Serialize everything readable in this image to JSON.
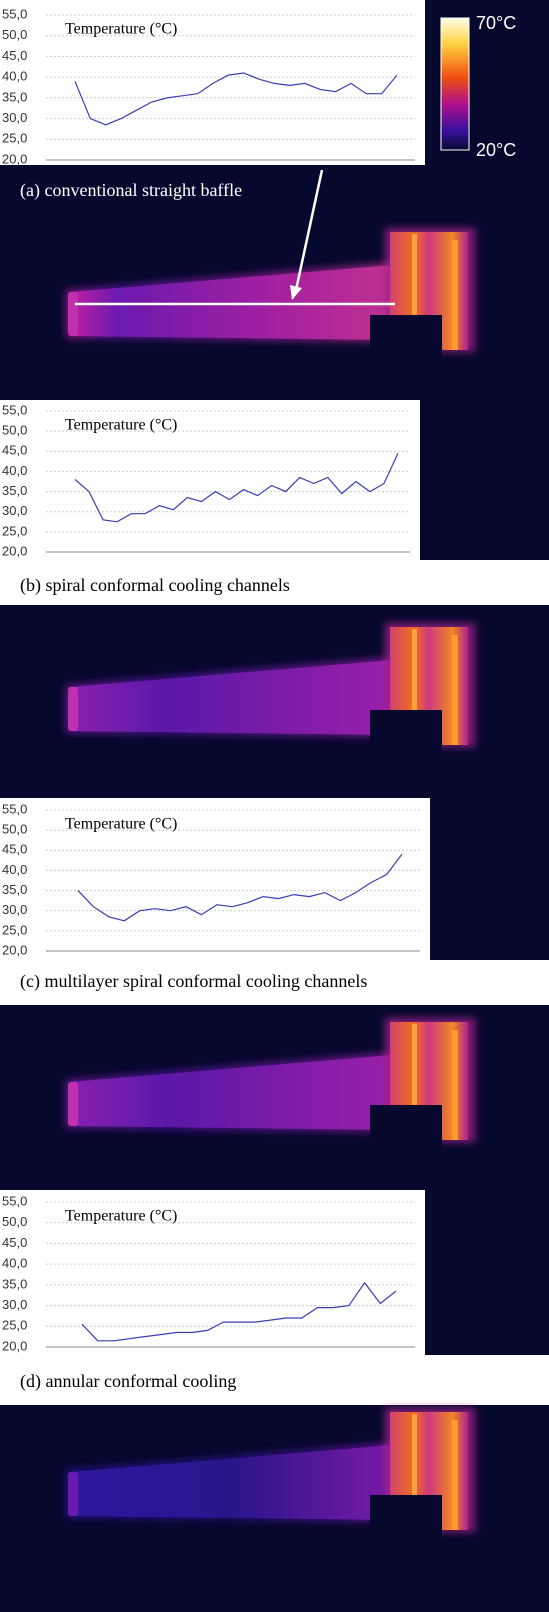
{
  "chart_data": [
    {
      "type": "line",
      "title": "Temperature (°C)",
      "caption": "(a) conventional straight baffle",
      "color": "#3c3cb4",
      "grid": true,
      "values": [
        39,
        30,
        28.5,
        30,
        32,
        34,
        35,
        35.5,
        36,
        38.5,
        40.5,
        41,
        39.5,
        38.5,
        38,
        38.5,
        37,
        36.5,
        38.5,
        36,
        36,
        40.5
      ],
      "ylim": [
        20,
        55
      ],
      "yticks": [
        {
          "value": 20,
          "label": "20,0"
        },
        {
          "value": 25,
          "label": "25,0"
        },
        {
          "value": 30,
          "label": "30,0"
        },
        {
          "value": 35,
          "label": "35,0"
        },
        {
          "value": 40,
          "label": "40,0"
        },
        {
          "value": 45,
          "label": "45,0"
        },
        {
          "value": 50,
          "label": "50,0"
        },
        {
          "value": 55,
          "label": "55,0"
        }
      ]
    },
    {
      "type": "line",
      "title": "Temperature (°C)",
      "caption": "(b) spiral conformal cooling channels",
      "color": "#3c3cb4",
      "grid": true,
      "values": [
        38,
        35,
        28,
        27.5,
        29.5,
        29.5,
        31.5,
        30.5,
        33.5,
        32.5,
        35,
        33,
        35.5,
        34,
        36.5,
        35,
        38.5,
        37,
        38.5,
        34.5,
        37.5,
        35,
        37,
        44.5
      ],
      "ylim": [
        20,
        55
      ],
      "yticks": [
        {
          "value": 20,
          "label": "20,0"
        },
        {
          "value": 25,
          "label": "25,0"
        },
        {
          "value": 30,
          "label": "30,0"
        },
        {
          "value": 35,
          "label": "35,0"
        },
        {
          "value": 40,
          "label": "40,0"
        },
        {
          "value": 45,
          "label": "45,0"
        },
        {
          "value": 50,
          "label": "50,0"
        },
        {
          "value": 55,
          "label": "55,0"
        }
      ]
    },
    {
      "type": "line",
      "title": "Temperature (°C)",
      "caption": "(c) multilayer spiral conformal cooling channels",
      "color": "#3c3cb4",
      "grid": true,
      "values": [
        35,
        31,
        28.5,
        27.5,
        30,
        30.5,
        30,
        31,
        29,
        31.5,
        31,
        32,
        33.5,
        33,
        34,
        33.5,
        34.5,
        32.5,
        34.5,
        37,
        39,
        44
      ],
      "ylim": [
        20,
        55
      ],
      "yticks": [
        {
          "value": 20,
          "label": "20,0"
        },
        {
          "value": 25,
          "label": "25,0"
        },
        {
          "value": 30,
          "label": "30,0"
        },
        {
          "value": 35,
          "label": "35,0"
        },
        {
          "value": 40,
          "label": "40,0"
        },
        {
          "value": 45,
          "label": "45,0"
        },
        {
          "value": 50,
          "label": "50,0"
        },
        {
          "value": 55,
          "label": "55,0"
        }
      ]
    },
    {
      "type": "line",
      "title": "Temperature (°C)",
      "caption": "(d) annular conformal cooling",
      "color": "#3c3cb4",
      "grid": true,
      "values": [
        25.5,
        21.5,
        21.5,
        22,
        22.5,
        23,
        23.5,
        23.5,
        24,
        26,
        26,
        26,
        26.5,
        27,
        27,
        29.5,
        29.5,
        30,
        35.5,
        30.5,
        33.5
      ],
      "ylim": [
        20,
        55
      ],
      "yticks": [
        {
          "value": 20,
          "label": "20,0"
        },
        {
          "value": 25,
          "label": "25,0"
        },
        {
          "value": 30,
          "label": "30,0"
        },
        {
          "value": 35,
          "label": "35,0"
        },
        {
          "value": 40,
          "label": "40,0"
        },
        {
          "value": 45,
          "label": "45,0"
        },
        {
          "value": 50,
          "label": "50,0"
        },
        {
          "value": 55,
          "label": "55,0"
        }
      ]
    }
  ],
  "colorbar": {
    "max": {
      "value": 70,
      "label": "70°C"
    },
    "min": {
      "value": 20,
      "label": "20°C"
    }
  }
}
